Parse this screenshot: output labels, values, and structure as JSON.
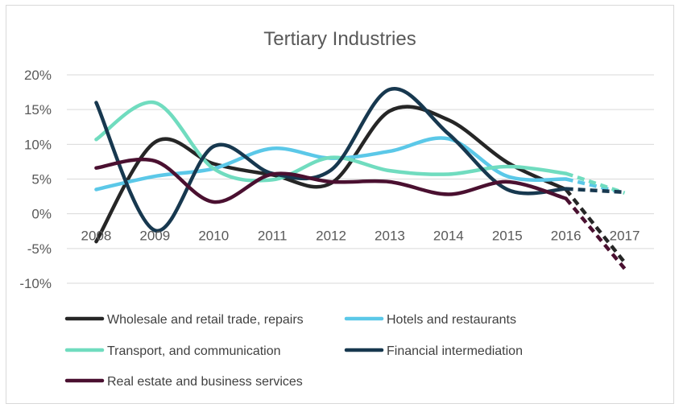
{
  "chart_data": {
    "type": "line",
    "title": "Tertiary Industries",
    "xlabel": "",
    "ylabel": "",
    "categories": [
      "2008",
      "2009",
      "2010",
      "2011",
      "2012",
      "2013",
      "2014",
      "2015",
      "2016",
      "2017"
    ],
    "y_tick_labels": [
      "20%",
      "15%",
      "10%",
      "5%",
      "0%",
      "-5%",
      "-10%"
    ],
    "ylim": [
      -10,
      20
    ],
    "y_unit": "%",
    "grid": true,
    "legend_position": "bottom",
    "projection_note_style": "dashed segment 2016-2017",
    "series": [
      {
        "name": "Wholesale and retail trade, repairs",
        "color": "#262626",
        "values": [
          -4.0,
          10.3,
          7.2,
          5.6,
          4.4,
          14.8,
          13.5,
          7.4,
          3.5,
          -7.0
        ]
      },
      {
        "name": "Hotels and restaurants",
        "color": "#5bc8e8",
        "values": [
          3.5,
          5.4,
          6.5,
          9.4,
          8.0,
          9.0,
          10.8,
          5.4,
          5.0,
          3.0
        ]
      },
      {
        "name": "Transport, and communication",
        "color": "#70dcbf",
        "values": [
          10.7,
          16.0,
          6.5,
          4.9,
          8.1,
          6.2,
          5.7,
          6.8,
          5.8,
          3.0
        ]
      },
      {
        "name": "Financial intermediation",
        "color": "#17384f",
        "values": [
          16.0,
          -2.4,
          9.7,
          5.8,
          6.3,
          17.9,
          11.5,
          3.5,
          3.6,
          3.1
        ]
      },
      {
        "name": "Real estate and business services",
        "color": "#4a1030",
        "values": [
          6.6,
          7.6,
          1.7,
          5.7,
          4.6,
          4.6,
          2.8,
          4.6,
          2.2,
          -7.9
        ]
      }
    ]
  }
}
